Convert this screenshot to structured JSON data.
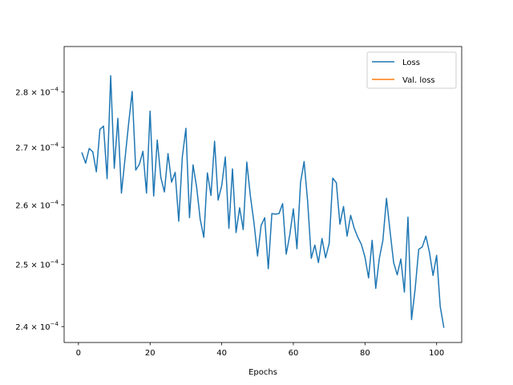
{
  "chart_data": {
    "type": "line",
    "title": "",
    "xlabel": "Epochs",
    "ylabel": "",
    "yscale": "log",
    "xlim": [
      -4,
      107
    ],
    "ylim": [
      0.0002375,
      0.0002885
    ],
    "xticks": [
      0,
      20,
      40,
      60,
      80,
      100
    ],
    "xtick_labels": [
      "0",
      "20",
      "40",
      "60",
      "80",
      "100"
    ],
    "yticks": [
      0.00024,
      0.00025,
      0.00026,
      0.00027,
      0.00028
    ],
    "ytick_labels": [
      {
        "mantissa": "2.4",
        "times": "×",
        "base": "10",
        "exp": "−4"
      },
      {
        "mantissa": "2.5",
        "times": "×",
        "base": "10",
        "exp": "−4"
      },
      {
        "mantissa": "2.6",
        "times": "×",
        "base": "10",
        "exp": "−4"
      },
      {
        "mantissa": "2.7",
        "times": "×",
        "base": "10",
        "exp": "−4"
      },
      {
        "mantissa": "2.8",
        "times": "×",
        "base": "10",
        "exp": "−4"
      }
    ],
    "grid": false,
    "legend_position": "top-right",
    "series": [
      {
        "name": "Loss",
        "color": "#1f77b4",
        "x": [
          1,
          2,
          3,
          4,
          5,
          6,
          7,
          8,
          9,
          10,
          11,
          12,
          13,
          14,
          15,
          16,
          17,
          18,
          19,
          20,
          21,
          22,
          23,
          24,
          25,
          26,
          27,
          28,
          29,
          30,
          31,
          32,
          33,
          34,
          35,
          36,
          37,
          38,
          39,
          40,
          41,
          42,
          43,
          44,
          45,
          46,
          47,
          48,
          49,
          50,
          51,
          52,
          53,
          54,
          55,
          56,
          57,
          58,
          59,
          60,
          61,
          62,
          63,
          64,
          65,
          66,
          67,
          68,
          69,
          70,
          71,
          72,
          73,
          74,
          75,
          76,
          77,
          78,
          79,
          80,
          81,
          82,
          83,
          84,
          85,
          86,
          87,
          88,
          89,
          90,
          91,
          92,
          93,
          94,
          95,
          96,
          97,
          98,
          99,
          100,
          101,
          102
        ],
        "y": [
          0.000269,
          0.0002672,
          0.0002698,
          0.0002692,
          0.0002657,
          0.0002732,
          0.0002738,
          0.0002645,
          0.000283,
          0.0002663,
          0.0002752,
          0.000262,
          0.000268,
          0.0002742,
          0.0002801,
          0.000266,
          0.000267,
          0.0002693,
          0.000262,
          0.0002765,
          0.0002615,
          0.0002713,
          0.0002647,
          0.0002622,
          0.0002689,
          0.0002639,
          0.0002656,
          0.0002572,
          0.0002683,
          0.0002734,
          0.0002578,
          0.0002669,
          0.000263,
          0.0002575,
          0.0002545,
          0.0002655,
          0.0002616,
          0.0002711,
          0.0002608,
          0.0002633,
          0.0002683,
          0.000256,
          0.0002662,
          0.0002553,
          0.0002595,
          0.0002558,
          0.0002674,
          0.0002615,
          0.000257,
          0.0002514,
          0.0002565,
          0.0002578,
          0.0002493,
          0.0002585,
          0.0002584,
          0.0002585,
          0.0002602,
          0.0002517,
          0.0002549,
          0.0002593,
          0.0002526,
          0.0002638,
          0.0002675,
          0.0002605,
          0.000251,
          0.0002532,
          0.0002503,
          0.0002543,
          0.0002511,
          0.0002535,
          0.0002646,
          0.0002638,
          0.0002567,
          0.0002597,
          0.0002547,
          0.0002582,
          0.000256,
          0.0002545,
          0.0002533,
          0.0002512,
          0.0002478,
          0.000254,
          0.0002461,
          0.000251,
          0.000254,
          0.0002611,
          0.0002555,
          0.0002503,
          0.0002483,
          0.0002509,
          0.0002455,
          0.0002579,
          0.0002411,
          0.000246,
          0.0002525,
          0.0002529,
          0.0002547,
          0.000252,
          0.0002482,
          0.0002515,
          0.0002432,
          0.0002399
        ]
      },
      {
        "name": "Val. loss",
        "color": "#ff7f0e",
        "x": [],
        "y": []
      }
    ]
  }
}
